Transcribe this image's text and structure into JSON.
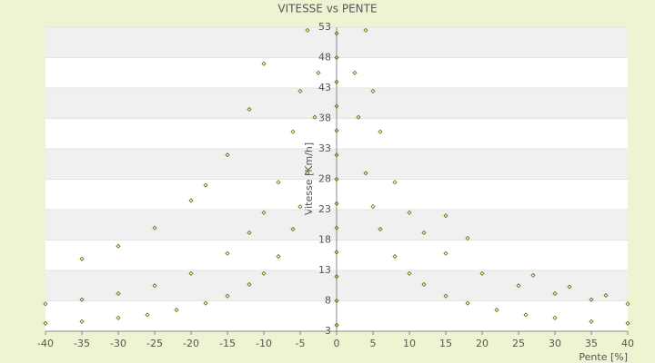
{
  "chart_data": {
    "type": "scatter",
    "title": "VITESSE vs PENTE",
    "x_label": "Pente [%]",
    "y_label": "Vitesse [Km/h]",
    "color": "#5b6b00",
    "x": [
      -2.5,
      -3,
      -4,
      -5,
      -6,
      -8,
      -10,
      -12,
      -15,
      -18,
      -22,
      -26,
      -30,
      -35,
      -40,
      2.5,
      3,
      4,
      5,
      6,
      8,
      10,
      12,
      15,
      18,
      22,
      26,
      30,
      35,
      40,
      -4,
      -5,
      -6,
      -8,
      -10,
      -12,
      -15,
      -20,
      -25,
      -30,
      -35,
      -40,
      4,
      5,
      6,
      8,
      10,
      12,
      15,
      20,
      25,
      30,
      35,
      40,
      -10,
      -12,
      -15,
      -18,
      -20,
      -25,
      -30,
      -35,
      15,
      18,
      27,
      32,
      37,
      0,
      0,
      0,
      0,
      0,
      0,
      0,
      0,
      0,
      0,
      0,
      0,
      0
    ],
    "values": [
      45.5,
      38.2,
      29,
      23.5,
      19.8,
      15.3,
      12.5,
      10.7,
      8.8,
      7.6,
      6.5,
      5.7,
      5.2,
      4.6,
      4.3,
      45.5,
      38.2,
      29,
      23.5,
      19.8,
      15.3,
      12.5,
      10.7,
      8.8,
      7.6,
      6.5,
      5.7,
      5.2,
      4.6,
      4.3,
      52.5,
      42.5,
      35.8,
      27.5,
      22.5,
      19.2,
      15.8,
      12.5,
      10.5,
      9.2,
      8.2,
      7.5,
      52.5,
      42.5,
      35.8,
      27.5,
      22.5,
      19.2,
      15.8,
      12.5,
      10.5,
      9.2,
      8.2,
      7.5,
      47,
      39.5,
      32,
      27,
      24.5,
      20,
      17,
      14.9,
      22,
      18.3,
      12.2,
      10.3,
      8.9,
      4,
      8,
      12,
      16,
      20,
      24,
      28,
      32,
      36,
      40,
      44,
      48,
      52
    ],
    "xlim": [
      -40,
      40
    ],
    "xticks": [
      -40,
      -35,
      -30,
      -25,
      -20,
      -15,
      -10,
      -5,
      0,
      5,
      10,
      15,
      20,
      25,
      30,
      35,
      40
    ],
    "ylim": [
      3,
      53
    ],
    "yticks": [
      3,
      8,
      13,
      18,
      23,
      28,
      33,
      38,
      43,
      48,
      53
    ],
    "grid": true
  }
}
